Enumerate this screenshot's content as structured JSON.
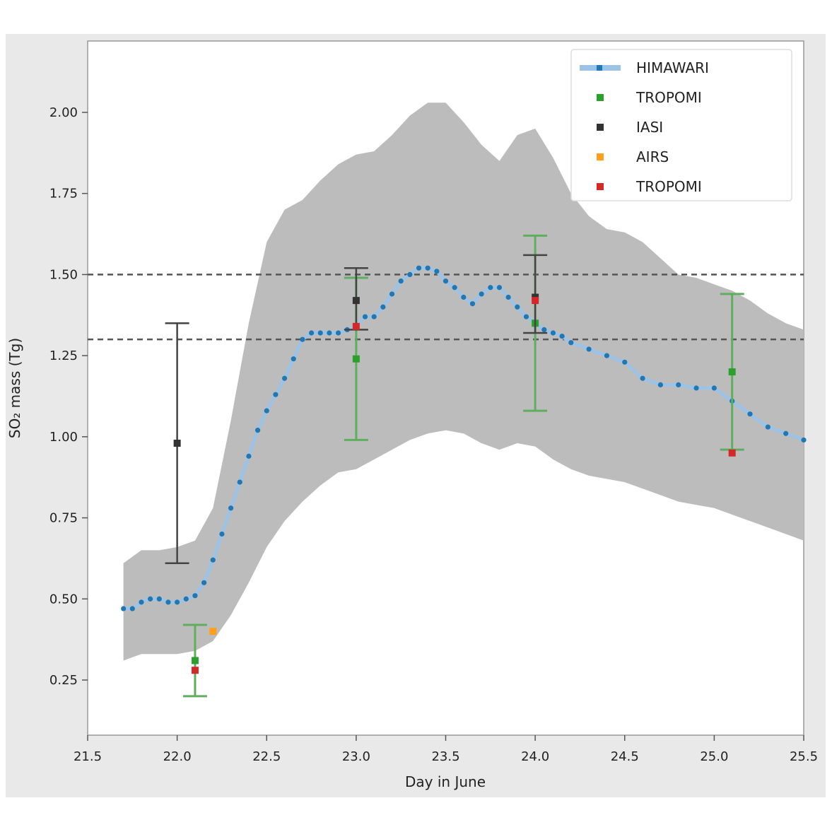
{
  "chart_data": {
    "type": "line",
    "title": "",
    "xlabel": "Day in June",
    "ylabel": "SO₂ mass (Tg)",
    "xlim": [
      21.5,
      25.5
    ],
    "ylim": [
      0.08,
      2.22
    ],
    "xticks": [
      21.5,
      22.0,
      22.5,
      23.0,
      23.5,
      24.0,
      24.5,
      25.0,
      25.5
    ],
    "xtick_labels": [
      "21.5",
      "22.0",
      "22.5",
      "23.0",
      "23.5",
      "24.0",
      "24.5",
      "25.0",
      "25.5"
    ],
    "yticks": [
      0.25,
      0.5,
      0.75,
      1.0,
      1.25,
      1.5,
      1.75,
      2.0
    ],
    "ytick_labels": [
      "0.25",
      "0.50",
      "0.75",
      "1.00",
      "1.25",
      "1.50",
      "1.75",
      "2.00"
    ],
    "grid": false,
    "legend_position": "upper right",
    "colors": {
      "model": "#1f77b4",
      "tropomi": "#2ca02c",
      "iasi": "#333333",
      "airs": "#ff9f1c",
      "tropomi_red": "#d62728",
      "spread": "#bcbcbc",
      "reference": "#555555"
    },
    "reference_lines": [
      1.5,
      1.3
    ],
    "spread_band": {
      "x": [
        21.7,
        21.8,
        21.9,
        22.0,
        22.1,
        22.2,
        22.3,
        22.4,
        22.5,
        22.6,
        22.7,
        22.8,
        22.9,
        23.0,
        23.1,
        23.2,
        23.3,
        23.4,
        23.5,
        23.6,
        23.7,
        23.8,
        23.9,
        24.0,
        24.1,
        24.2,
        24.3,
        24.4,
        24.5,
        24.6,
        24.7,
        24.8,
        24.9,
        25.0,
        25.1,
        25.2,
        25.3,
        25.4,
        25.5
      ],
      "lower": [
        0.31,
        0.33,
        0.33,
        0.33,
        0.34,
        0.37,
        0.45,
        0.55,
        0.66,
        0.74,
        0.8,
        0.85,
        0.89,
        0.9,
        0.93,
        0.96,
        0.99,
        1.01,
        1.02,
        1.01,
        0.98,
        0.96,
        0.98,
        0.97,
        0.93,
        0.9,
        0.88,
        0.87,
        0.86,
        0.84,
        0.82,
        0.8,
        0.79,
        0.78,
        0.76,
        0.74,
        0.72,
        0.7,
        0.68
      ],
      "upper": [
        0.61,
        0.65,
        0.65,
        0.66,
        0.68,
        0.78,
        1.05,
        1.35,
        1.6,
        1.7,
        1.73,
        1.79,
        1.84,
        1.87,
        1.88,
        1.93,
        1.99,
        2.03,
        2.03,
        1.97,
        1.9,
        1.85,
        1.93,
        1.95,
        1.86,
        1.75,
        1.68,
        1.64,
        1.63,
        1.6,
        1.55,
        1.5,
        1.49,
        1.47,
        1.45,
        1.42,
        1.38,
        1.35,
        1.33
      ]
    },
    "series": [
      {
        "name": "HIMAWARI",
        "x": [
          21.7,
          21.75,
          21.8,
          21.85,
          21.9,
          21.95,
          22.0,
          22.05,
          22.1,
          22.15,
          22.2,
          22.25,
          22.3,
          22.35,
          22.4,
          22.45,
          22.5,
          22.55,
          22.6,
          22.65,
          22.7,
          22.75,
          22.8,
          22.85,
          22.9,
          22.95,
          23.0,
          23.05,
          23.1,
          23.15,
          23.2,
          23.25,
          23.3,
          23.35,
          23.4,
          23.45,
          23.5,
          23.55,
          23.6,
          23.65,
          23.7,
          23.75,
          23.8,
          23.85,
          23.9,
          23.95,
          24.0,
          24.05,
          24.1,
          24.15,
          24.2,
          24.3,
          24.4,
          24.5,
          24.6,
          24.7,
          24.8,
          24.9,
          25.0,
          25.1,
          25.2,
          25.3,
          25.4,
          25.5
        ],
        "y": [
          0.47,
          0.47,
          0.49,
          0.5,
          0.5,
          0.49,
          0.49,
          0.5,
          0.51,
          0.55,
          0.62,
          0.7,
          0.78,
          0.86,
          0.94,
          1.02,
          1.08,
          1.13,
          1.18,
          1.24,
          1.3,
          1.32,
          1.32,
          1.32,
          1.32,
          1.33,
          1.34,
          1.37,
          1.37,
          1.4,
          1.44,
          1.48,
          1.5,
          1.52,
          1.52,
          1.51,
          1.48,
          1.46,
          1.43,
          1.41,
          1.44,
          1.46,
          1.46,
          1.43,
          1.4,
          1.37,
          1.35,
          1.33,
          1.32,
          1.31,
          1.29,
          1.27,
          1.25,
          1.23,
          1.18,
          1.16,
          1.16,
          1.15,
          1.15,
          1.11,
          1.07,
          1.03,
          1.01,
          0.99
        ]
      }
    ],
    "observations": [
      {
        "name": "TROPOMI",
        "marker": "square",
        "color_key": "tropomi",
        "points": [
          {
            "x": 22.1,
            "y": 0.31,
            "err_low": 0.2,
            "err_high": 0.42
          },
          {
            "x": 23.0,
            "y": 1.24,
            "err_low": 0.99,
            "err_high": 1.49
          },
          {
            "x": 24.0,
            "y": 1.35,
            "err_low": 1.08,
            "err_high": 1.62
          },
          {
            "x": 25.1,
            "y": 1.2,
            "err_low": 0.96,
            "err_high": 1.44
          }
        ]
      },
      {
        "name": "IASI",
        "marker": "square",
        "color_key": "iasi",
        "points": [
          {
            "x": 22.0,
            "y": 0.98,
            "err_low": 0.61,
            "err_high": 1.35
          },
          {
            "x": 23.0,
            "y": 1.42,
            "err_low": 1.33,
            "err_high": 1.52
          },
          {
            "x": 24.0,
            "y": 1.43,
            "err_low": 1.32,
            "err_high": 1.56
          }
        ]
      },
      {
        "name": "AIRS",
        "marker": "square",
        "color_key": "airs",
        "points": [
          {
            "x": 22.2,
            "y": 0.4
          }
        ]
      },
      {
        "name": "TROPOMI",
        "marker": "square",
        "color_key": "tropomi_red",
        "points": [
          {
            "x": 22.1,
            "y": 0.28
          },
          {
            "x": 23.0,
            "y": 1.34
          },
          {
            "x": 24.0,
            "y": 1.42
          },
          {
            "x": 25.1,
            "y": 0.95
          }
        ]
      }
    ]
  }
}
